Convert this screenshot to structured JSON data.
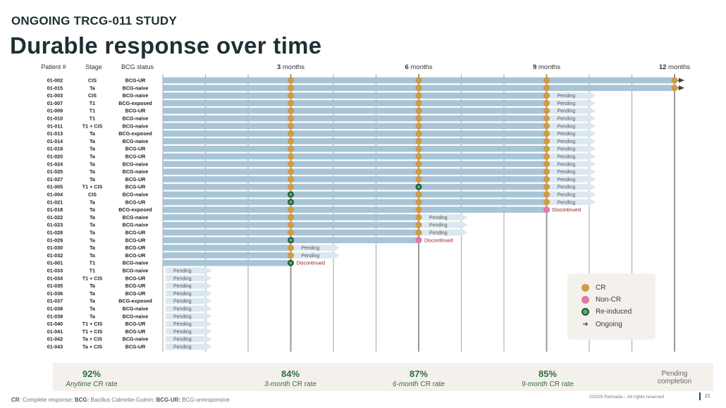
{
  "header": {
    "kicker": "ONGOING TRCG-011 STUDY",
    "title": "Durable response over time"
  },
  "columns": {
    "patient": "Patient #",
    "stage": "Stage",
    "bcg": "BCG status"
  },
  "labels": {
    "pending": "Pending",
    "discontinued": "Discontinued"
  },
  "colors": {
    "bar": "#a8c4d6",
    "pending_bar": "#dce8ef",
    "cr": "#d19a45",
    "noncr": "#e07aa8",
    "reinduced": "#1d5e3a",
    "grid": "#b0b0b0",
    "month_line": "#999999"
  },
  "chart_data": {
    "type": "swimmer",
    "x_unit": "months",
    "xlim": [
      0,
      12
    ],
    "milestones": [
      {
        "num": "3",
        "label": "months",
        "month": 3
      },
      {
        "num": "6",
        "label": "months",
        "month": 6
      },
      {
        "num": "9",
        "label": "months",
        "month": 9
      },
      {
        "num": "12",
        "label": "months",
        "month": 12
      }
    ],
    "patients": [
      {
        "id": "01-002",
        "stage": "CIS",
        "bcg": "BCG-UR",
        "duration": 12,
        "markers": [
          [
            3,
            "CR"
          ],
          [
            6,
            "CR"
          ],
          [
            9,
            "CR"
          ],
          [
            12,
            "CR"
          ]
        ],
        "ongoing": true
      },
      {
        "id": "01-015",
        "stage": "Ta",
        "bcg": "BCG-naive",
        "duration": 12,
        "markers": [
          [
            3,
            "CR"
          ],
          [
            6,
            "CR"
          ],
          [
            9,
            "CR"
          ],
          [
            12,
            "CR"
          ]
        ],
        "ongoing": true
      },
      {
        "id": "01-003",
        "stage": "CIS",
        "bcg": "BCG-naive",
        "duration": 9,
        "markers": [
          [
            3,
            "CR"
          ],
          [
            6,
            "CR"
          ],
          [
            9,
            "CR"
          ]
        ],
        "pending": true
      },
      {
        "id": "01-007",
        "stage": "T1",
        "bcg": "BCG-exposed",
        "duration": 9,
        "markers": [
          [
            3,
            "CR"
          ],
          [
            6,
            "CR"
          ],
          [
            9,
            "CR"
          ]
        ],
        "pending": true
      },
      {
        "id": "01-009",
        "stage": "T1",
        "bcg": "BCG-UR",
        "duration": 9,
        "markers": [
          [
            3,
            "CR"
          ],
          [
            6,
            "CR"
          ],
          [
            9,
            "CR"
          ]
        ],
        "pending": true
      },
      {
        "id": "01-010",
        "stage": "T1",
        "bcg": "BCG-naive",
        "duration": 9,
        "markers": [
          [
            3,
            "CR"
          ],
          [
            6,
            "CR"
          ],
          [
            9,
            "CR"
          ]
        ],
        "pending": true
      },
      {
        "id": "01-011",
        "stage": "T1 + CIS",
        "bcg": "BCG-naive",
        "duration": 9,
        "markers": [
          [
            3,
            "CR"
          ],
          [
            6,
            "CR"
          ],
          [
            9,
            "CR"
          ]
        ],
        "pending": true
      },
      {
        "id": "01-013",
        "stage": "Ta",
        "bcg": "BCG-exposed",
        "duration": 9,
        "markers": [
          [
            3,
            "CR"
          ],
          [
            6,
            "CR"
          ],
          [
            9,
            "CR"
          ]
        ],
        "pending": true
      },
      {
        "id": "01-014",
        "stage": "Ta",
        "bcg": "BCG-naive",
        "duration": 9,
        "markers": [
          [
            3,
            "CR"
          ],
          [
            6,
            "CR"
          ],
          [
            9,
            "CR"
          ]
        ],
        "pending": true
      },
      {
        "id": "01-019",
        "stage": "Ta",
        "bcg": "BCG-UR",
        "duration": 9,
        "markers": [
          [
            3,
            "CR"
          ],
          [
            6,
            "CR"
          ],
          [
            9,
            "CR"
          ]
        ],
        "pending": true
      },
      {
        "id": "01-020",
        "stage": "Ta",
        "bcg": "BCG-UR",
        "duration": 9,
        "markers": [
          [
            3,
            "CR"
          ],
          [
            6,
            "CR"
          ],
          [
            9,
            "CR"
          ]
        ],
        "pending": true
      },
      {
        "id": "01-024",
        "stage": "Ta",
        "bcg": "BCG-naive",
        "duration": 9,
        "markers": [
          [
            3,
            "CR"
          ],
          [
            6,
            "CR"
          ],
          [
            9,
            "CR"
          ]
        ],
        "pending": true
      },
      {
        "id": "01-025",
        "stage": "Ta",
        "bcg": "BCG-naive",
        "duration": 9,
        "markers": [
          [
            3,
            "CR"
          ],
          [
            6,
            "CR"
          ],
          [
            9,
            "CR"
          ]
        ],
        "pending": true
      },
      {
        "id": "01-027",
        "stage": "Ta",
        "bcg": "BCG-UR",
        "duration": 9,
        "markers": [
          [
            3,
            "CR"
          ],
          [
            6,
            "CR"
          ],
          [
            9,
            "CR"
          ]
        ],
        "pending": true
      },
      {
        "id": "01-005",
        "stage": "T1 + CIS",
        "bcg": "BCG-UR",
        "duration": 9,
        "markers": [
          [
            3,
            "CR"
          ],
          [
            6,
            "RE"
          ],
          [
            9,
            "CR"
          ]
        ],
        "pending": true
      },
      {
        "id": "01-004",
        "stage": "CIS",
        "bcg": "BCG-naive",
        "duration": 9,
        "markers": [
          [
            3,
            "RE"
          ],
          [
            6,
            "CR"
          ],
          [
            9,
            "CR"
          ]
        ],
        "pending": true
      },
      {
        "id": "01-021",
        "stage": "Ta",
        "bcg": "BCG-UR",
        "duration": 9,
        "markers": [
          [
            3,
            "RE"
          ],
          [
            6,
            "CR"
          ],
          [
            9,
            "CR"
          ]
        ],
        "pending": true
      },
      {
        "id": "01-018",
        "stage": "Ta",
        "bcg": "BCG-exposed",
        "duration": 9,
        "markers": [
          [
            3,
            "CR"
          ],
          [
            6,
            "CR"
          ],
          [
            9,
            "NC"
          ]
        ],
        "discontinued": true
      },
      {
        "id": "01-022",
        "stage": "Ta",
        "bcg": "BCG-naive",
        "duration": 6,
        "markers": [
          [
            3,
            "CR"
          ],
          [
            6,
            "CR"
          ]
        ],
        "pending": true
      },
      {
        "id": "01-023",
        "stage": "Ta",
        "bcg": "BCG-naive",
        "duration": 6,
        "markers": [
          [
            3,
            "CR"
          ],
          [
            6,
            "CR"
          ]
        ],
        "pending": true
      },
      {
        "id": "01-028",
        "stage": "Ta",
        "bcg": "BCG-UR",
        "duration": 6,
        "markers": [
          [
            3,
            "CR"
          ],
          [
            6,
            "CR"
          ]
        ],
        "pending": true
      },
      {
        "id": "01-029",
        "stage": "Ta",
        "bcg": "BCG-UR",
        "duration": 6,
        "markers": [
          [
            3,
            "RE"
          ],
          [
            6,
            "NC"
          ]
        ],
        "discontinued": true
      },
      {
        "id": "01-030",
        "stage": "Ta",
        "bcg": "BCG-UR",
        "duration": 3,
        "markers": [
          [
            3,
            "CR"
          ]
        ],
        "pending": true
      },
      {
        "id": "01-032",
        "stage": "Ta",
        "bcg": "BCG-UR",
        "duration": 3,
        "markers": [
          [
            3,
            "CR"
          ]
        ],
        "pending": true
      },
      {
        "id": "01-001",
        "stage": "T1",
        "bcg": "BCG-naive",
        "duration": 3,
        "markers": [
          [
            3,
            "RE"
          ]
        ],
        "discontinued": true
      },
      {
        "id": "01-033",
        "stage": "T1",
        "bcg": "BCG-naive",
        "duration": 0,
        "markers": [],
        "pending": true
      },
      {
        "id": "01-034",
        "stage": "T1 + CIS",
        "bcg": "BCG-UR",
        "duration": 0,
        "markers": [],
        "pending": true
      },
      {
        "id": "01-035",
        "stage": "Ta",
        "bcg": "BCG-UR",
        "duration": 0,
        "markers": [],
        "pending": true
      },
      {
        "id": "01-036",
        "stage": "Ta",
        "bcg": "BCG-UR",
        "duration": 0,
        "markers": [],
        "pending": true
      },
      {
        "id": "01-037",
        "stage": "Ta",
        "bcg": "BCG-exposed",
        "duration": 0,
        "markers": [],
        "pending": true
      },
      {
        "id": "01-038",
        "stage": "Ta",
        "bcg": "BCG-naive",
        "duration": 0,
        "markers": [],
        "pending": true
      },
      {
        "id": "01-039",
        "stage": "Ta",
        "bcg": "BCG-naive",
        "duration": 0,
        "markers": [],
        "pending": true
      },
      {
        "id": "01-040",
        "stage": "T1 + CIS",
        "bcg": "BCG-UR",
        "duration": 0,
        "markers": [],
        "pending": true
      },
      {
        "id": "01-041",
        "stage": "T1 + CIS",
        "bcg": "BCG-UR",
        "duration": 0,
        "markers": [],
        "pending": true
      },
      {
        "id": "01-042",
        "stage": "Ta + CIS",
        "bcg": "BCG-naive",
        "duration": 0,
        "markers": [],
        "pending": true
      },
      {
        "id": "01-043",
        "stage": "Ta + CIS",
        "bcg": "BCG-UR",
        "duration": 0,
        "markers": [],
        "pending": true
      }
    ]
  },
  "legend": {
    "cr": "CR",
    "noncr": "Non-CR",
    "reinduced": "Re-induced",
    "ongoing": "Ongoing"
  },
  "summary": {
    "anytime": {
      "pct": "92%",
      "label_italic": "Anytime",
      "label": " CR rate"
    },
    "m3": {
      "pct": "84%",
      "label_italic": "3-month",
      "label": " CR rate"
    },
    "m6": {
      "pct": "87%",
      "label_italic": "6-month",
      "label": " CR rate"
    },
    "m9": {
      "pct": "85%",
      "label_italic": "9-month",
      "label": " CR rate"
    },
    "pending": {
      "line1": "Pending",
      "line2": "completion"
    }
  },
  "footer": {
    "fn1_key": "CR",
    "fn1_val": ": Complete response; ",
    "fn2_key": "BCG:",
    "fn2_val": " Bacillus Calmette-Guérin; ",
    "fn3_key": "BCG-UR:",
    "fn3_val": " BCG-unresponsive",
    "copyright": "©2025 Relmada – All rights reserved",
    "page": "21"
  }
}
